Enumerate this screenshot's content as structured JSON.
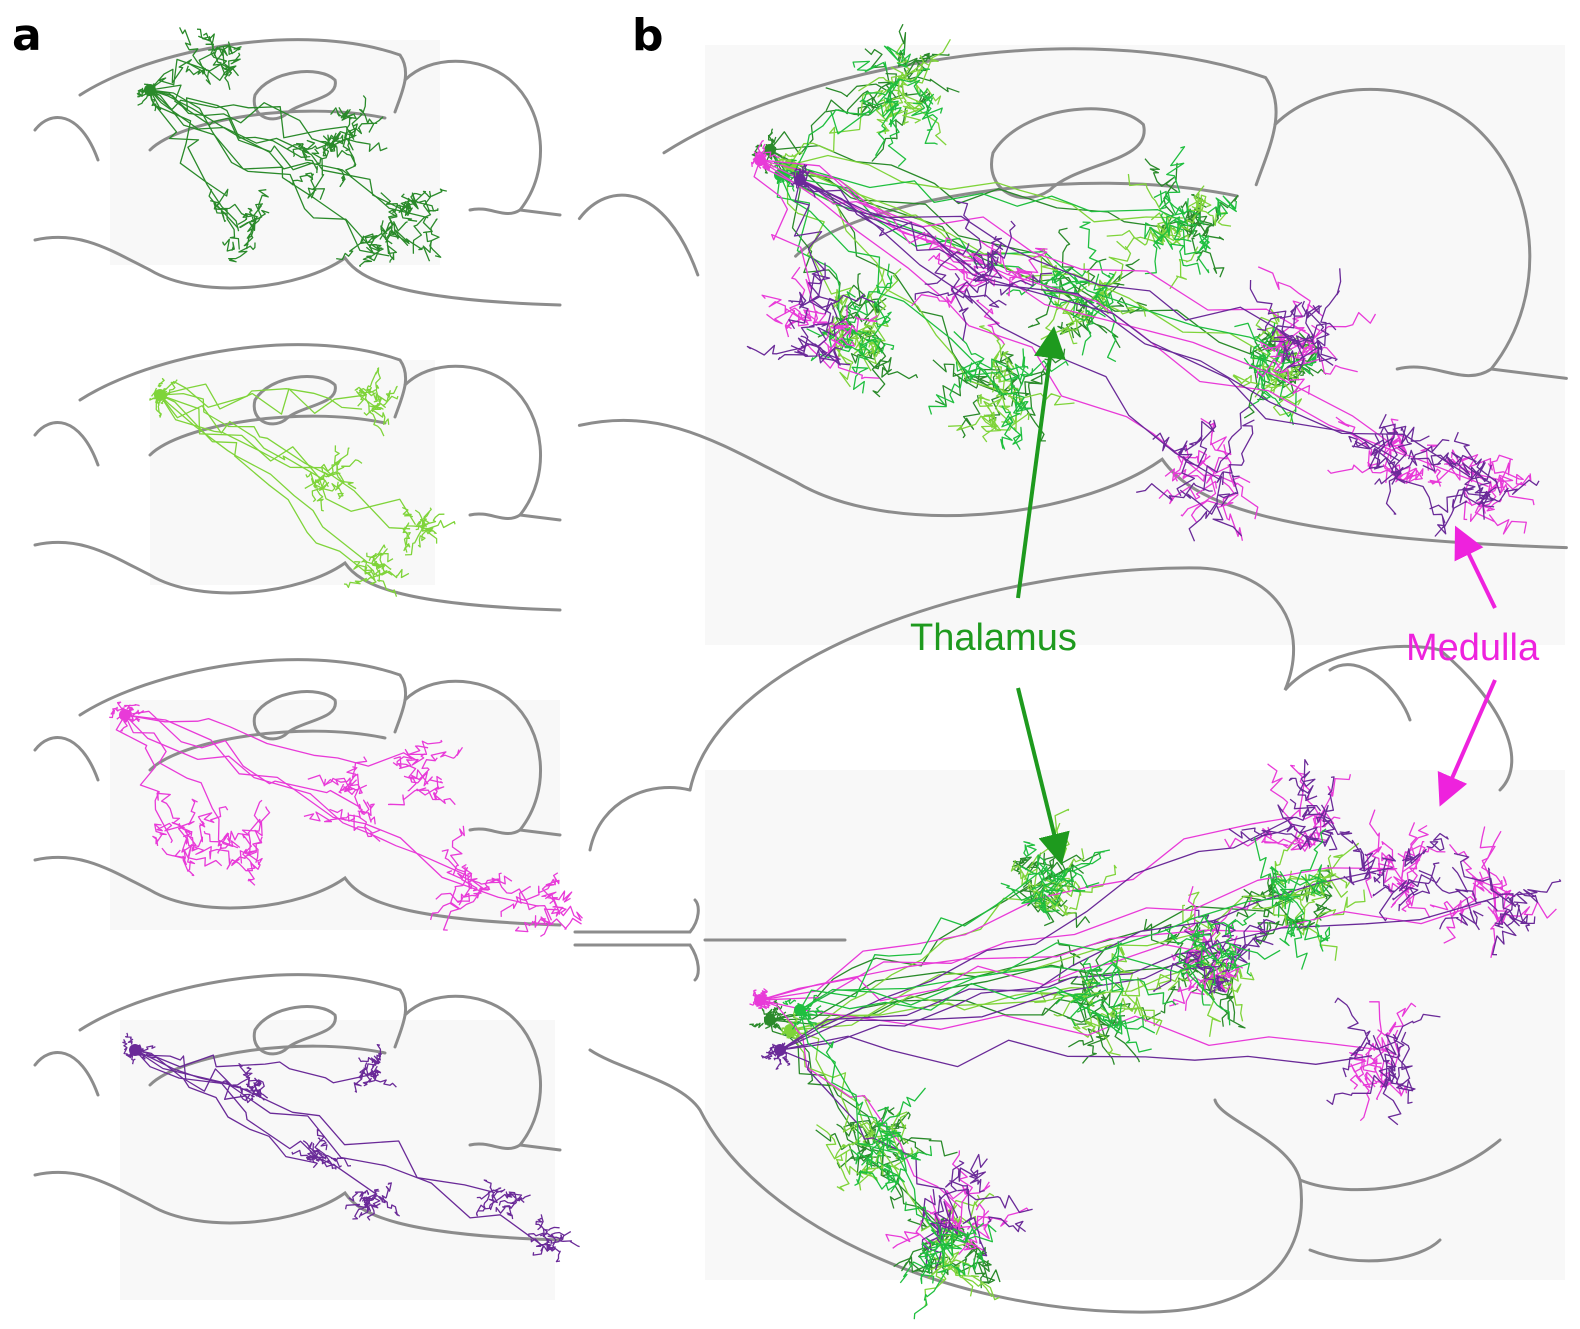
{
  "panels": [
    {
      "label": "a"
    },
    {
      "label": "b"
    }
  ],
  "annotations": [
    {
      "text": "Thalamus"
    },
    {
      "text": "Medulla"
    }
  ]
}
